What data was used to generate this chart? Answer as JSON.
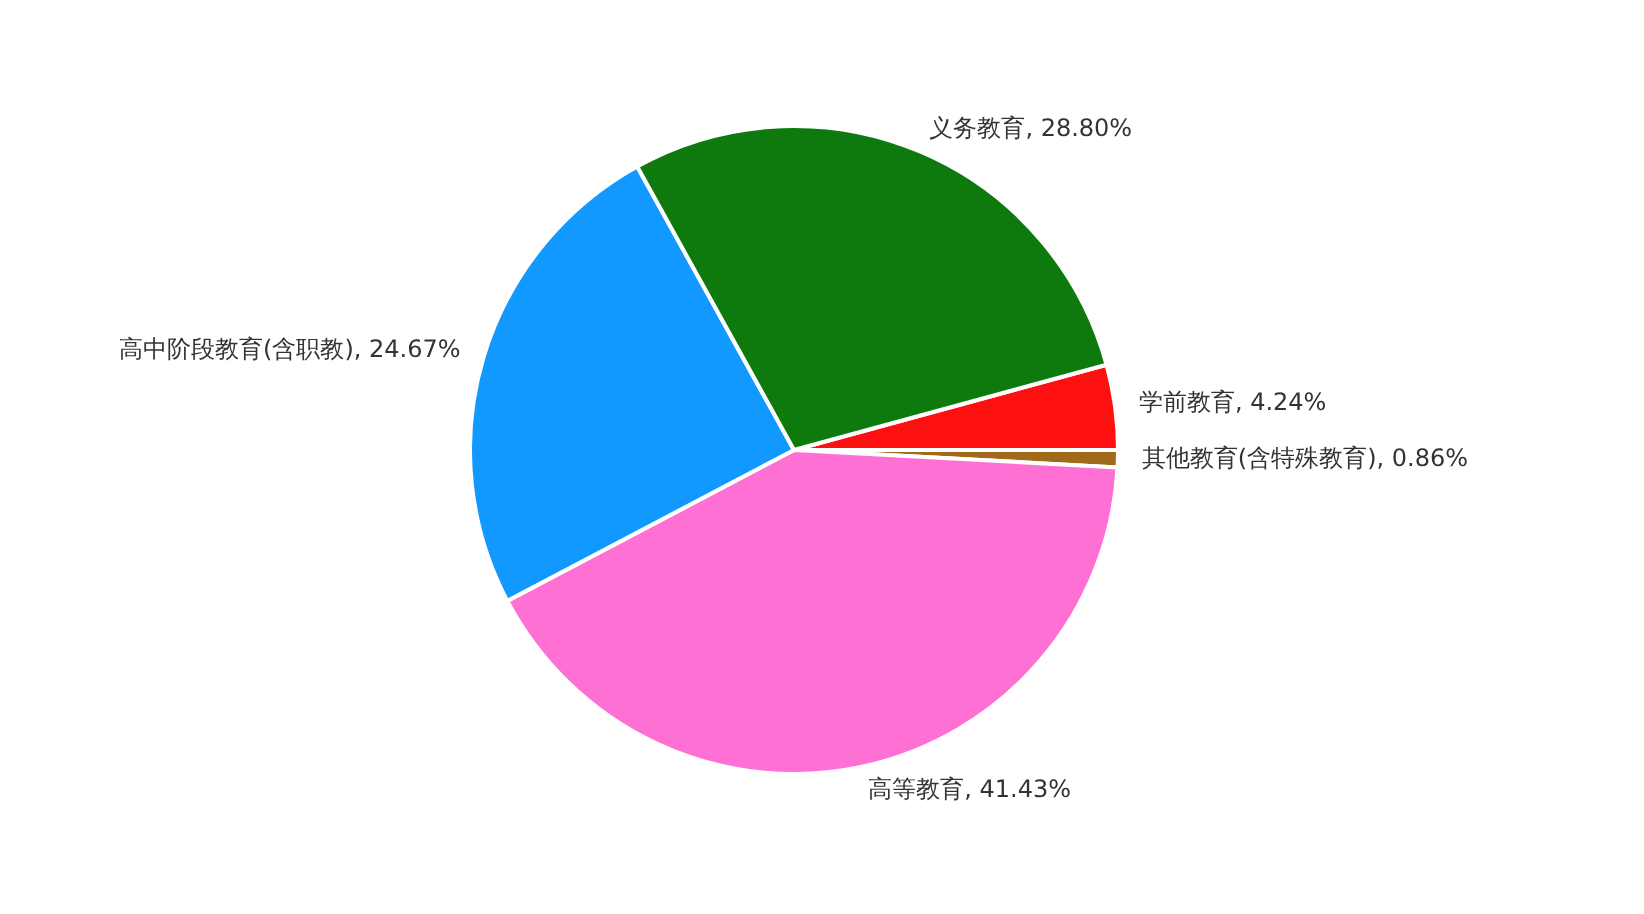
{
  "chart_data": {
    "type": "pie",
    "categories": [
      "学前教育",
      "其他教育(含特殊教育)",
      "高等教育",
      "高中阶段教育(含职教)",
      "义务教育"
    ],
    "values": [
      4.24,
      0.86,
      41.43,
      24.67,
      28.8
    ],
    "value_labels": [
      "4.24%",
      "0.86%",
      "41.43%",
      "24.67%",
      "28.80%"
    ],
    "colors": [
      "#ff1010",
      "#a06a1a",
      "#ff70d4",
      "#1199ff",
      "#0e7a0e"
    ]
  }
}
